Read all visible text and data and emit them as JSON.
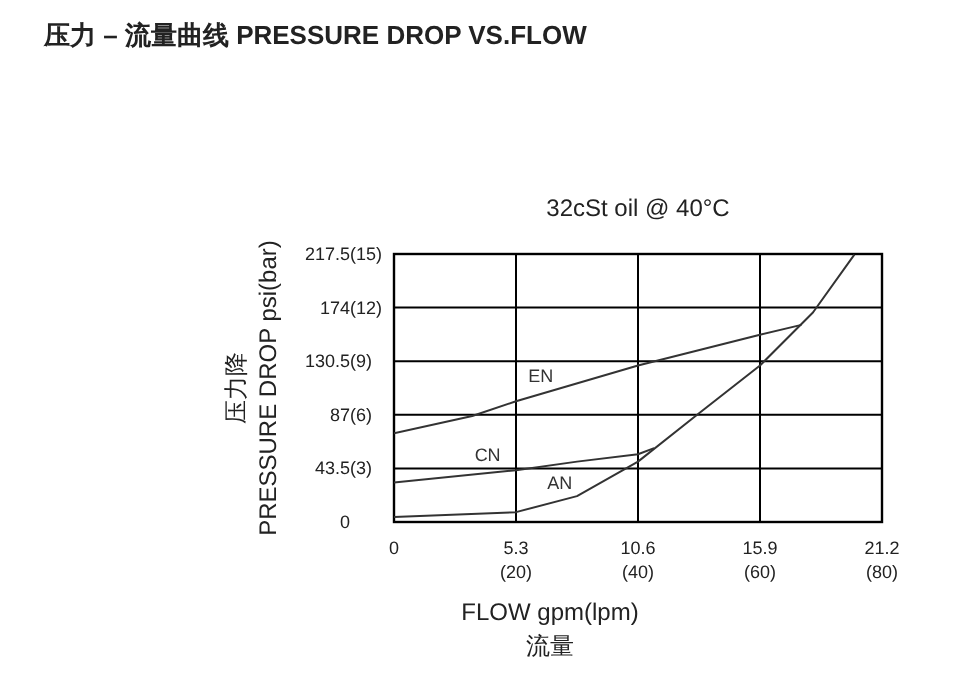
{
  "chart_data": {
    "type": "line",
    "title": "压力 – 流量曲线 PRESSURE DROP VS.FLOW",
    "subtitle": "32cSt oil @ 40°C",
    "xlabel": "FLOW  gpm(lpm)\n流量",
    "ylabel": "压力降\nPRESSURE DROP  psi(bar)",
    "xlim": [
      0,
      21.2
    ],
    "ylim": [
      0,
      217.5
    ],
    "xticks": [
      0,
      5.3,
      10.6,
      15.9,
      21.2
    ],
    "x2lim": [
      0,
      80
    ],
    "x2ticks": [
      {
        "value": 0,
        "label": null
      },
      {
        "value": 20,
        "label": "(20)"
      },
      {
        "value": 40,
        "label": "(40)"
      },
      {
        "value": 60,
        "label": "(60)"
      },
      {
        "value": 80,
        "label": "(80)"
      }
    ],
    "yticks": [
      0,
      43.5,
      87,
      130.5,
      174,
      217.5
    ],
    "y2lim": [
      0,
      15
    ],
    "y2ticks": [
      {
        "value": 0,
        "label": null
      },
      {
        "value": 3,
        "label": "(3)"
      },
      {
        "value": 6,
        "label": "(6)"
      },
      {
        "value": 9,
        "label": "(9)"
      },
      {
        "value": 12,
        "label": "(12)"
      },
      {
        "value": 15,
        "label": "(15)"
      }
    ],
    "grid": true,
    "marker": "none",
    "line_style": "solid",
    "series": [
      {
        "name": "EN",
        "color": "#333333",
        "x": [
          0,
          3.4,
          5.3,
          10.6,
          15.9,
          17.7
        ],
        "values": [
          72,
          86,
          98,
          127,
          152,
          160
        ]
      },
      {
        "name": "CN",
        "color": "#333333",
        "x": [
          0,
          5.3,
          7.95,
          10.6,
          11.3
        ],
        "values": [
          32,
          42,
          49,
          55,
          60
        ]
      },
      {
        "name": "AN",
        "color": "#333333",
        "x": [
          0,
          5.3,
          7.95,
          10.6,
          13.1,
          15.9,
          18.2,
          20.0
        ],
        "values": [
          4,
          8,
          21,
          49,
          86,
          127,
          170,
          217
        ]
      }
    ]
  }
}
